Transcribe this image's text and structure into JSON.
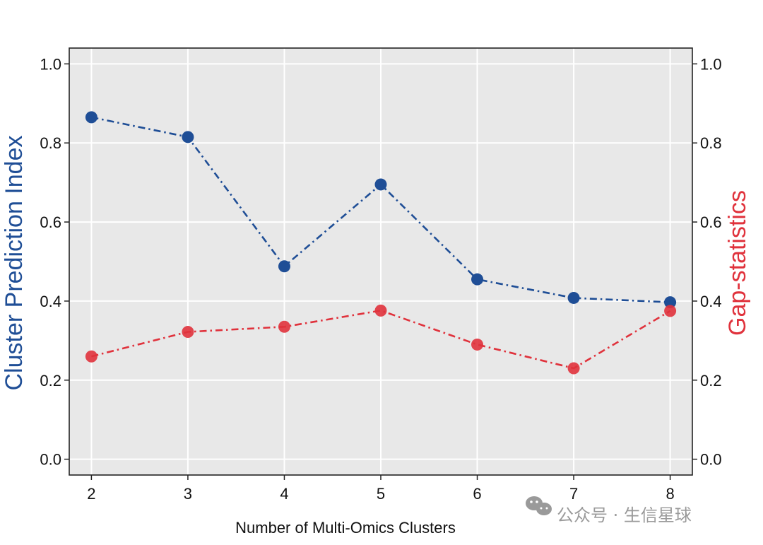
{
  "chart_data": {
    "type": "line",
    "x": [
      2,
      3,
      4,
      5,
      6,
      7,
      8
    ],
    "series": [
      {
        "name": "Cluster Prediction Index",
        "axis": "left",
        "color": "#1f4e96",
        "linestyle": "dashdot",
        "values": [
          0.865,
          0.815,
          0.488,
          0.695,
          0.455,
          0.408,
          0.397
        ]
      },
      {
        "name": "Gap-statistics",
        "axis": "right",
        "color": "#e0323c",
        "linestyle": "dashdot",
        "values": [
          0.26,
          0.322,
          0.335,
          0.376,
          0.29,
          0.23,
          0.375
        ]
      }
    ],
    "xlabel": "Number of Multi-Omics Clusters",
    "ylabel_left": "Cluster Prediction Index",
    "ylabel_right": "Gap-statistics",
    "xlim": [
      1.77,
      8.23
    ],
    "ylim": [
      -0.04,
      1.04
    ],
    "yticks": [
      0.0,
      0.2,
      0.4,
      0.6,
      0.8,
      1.0
    ],
    "xticks": [
      2,
      3,
      4,
      5,
      6,
      7,
      8
    ],
    "y_tick_labels": [
      "0.0",
      "0.2",
      "0.4",
      "0.6",
      "0.8",
      "1.0"
    ],
    "x_tick_labels": [
      "2",
      "3",
      "4",
      "5",
      "6",
      "7",
      "8"
    ],
    "grid": true,
    "panel_background": "#e8e8e8",
    "grid_color": "#ffffff"
  },
  "watermark": {
    "icon": "wechat-icon",
    "text": "公众号 · 生信星球"
  }
}
